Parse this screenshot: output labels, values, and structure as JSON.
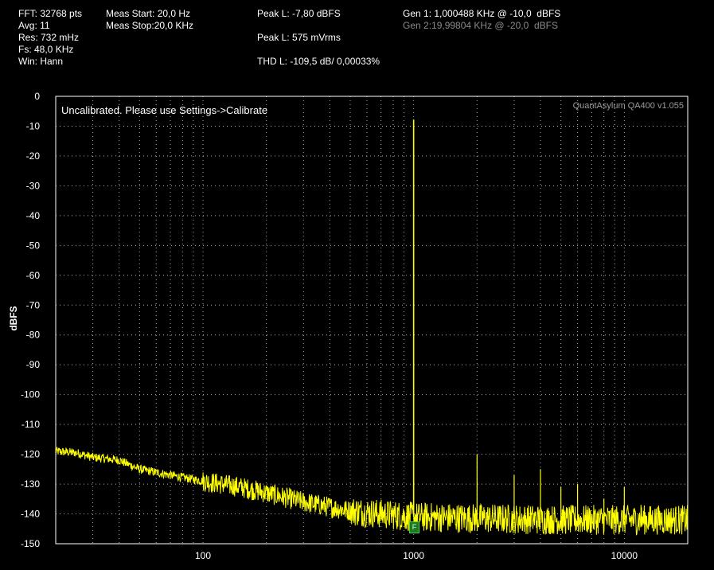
{
  "stats": {
    "fft": "FFT: 32768 pts",
    "avg": "Avg: 11",
    "res": "Res: 732 mHz",
    "fs": "Fs: 48,0 KHz",
    "win": "Win: Hann",
    "meas_start": "Meas Start: 20,0 Hz",
    "meas_stop": "Meas Stop:20,0 KHz",
    "peak_dbfs": "Peak L: -7,80 dBFS",
    "peak_vrms": "Peak L: 575 mVrms",
    "thd": "THD L: -109,5 dB/ 0,00033%",
    "gen1": "Gen 1: 1,000488 KHz @ -10,0  dBFS",
    "gen2": "Gen 2:19,99804 KHz @ -20,0  dBFS"
  },
  "notice": "Uncalibrated. Please use Settings->Calibrate",
  "brand": "QuantAsylum QA400 v1.055",
  "marker_label": "F",
  "colors": {
    "trace": "#ffff00",
    "grid": "#b0b0b0",
    "frame": "#ffffff",
    "marker": "#1f7a1f"
  },
  "chart_data": {
    "type": "line",
    "title": "",
    "xlabel": "",
    "ylabel": "dBFS",
    "x_scale": "log",
    "xlim": [
      20,
      20000
    ],
    "ylim": [
      -150,
      0
    ],
    "yticks": [
      0,
      -10,
      -20,
      -30,
      -40,
      -50,
      -60,
      -70,
      -80,
      -90,
      -100,
      -110,
      -120,
      -130,
      -140,
      -150
    ],
    "xtick_labels": [
      "100",
      "1000",
      "10000"
    ],
    "xticks": [
      100,
      1000,
      10000
    ],
    "grid": true,
    "series": [
      {
        "name": "",
        "noise_floor": [
          [
            20,
            -119
          ],
          [
            25,
            -119.5
          ],
          [
            30,
            -121
          ],
          [
            40,
            -122
          ],
          [
            50,
            -125
          ],
          [
            70,
            -127
          ],
          [
            100,
            -129
          ],
          [
            150,
            -131
          ],
          [
            200,
            -133
          ],
          [
            300,
            -136
          ],
          [
            500,
            -139
          ],
          [
            700,
            -140
          ],
          [
            1000,
            -141
          ],
          [
            2000,
            -141.5
          ],
          [
            5000,
            -142
          ],
          [
            10000,
            -142
          ],
          [
            20000,
            -142
          ]
        ],
        "peaks": [
          [
            1000,
            -7.8
          ],
          [
            2000,
            -120
          ],
          [
            3000,
            -127
          ],
          [
            4000,
            -125
          ],
          [
            5000,
            -131
          ],
          [
            6000,
            -130
          ],
          [
            8000,
            -135
          ],
          [
            10000,
            -131
          ],
          [
            12000,
            -137
          ]
        ]
      }
    ]
  }
}
